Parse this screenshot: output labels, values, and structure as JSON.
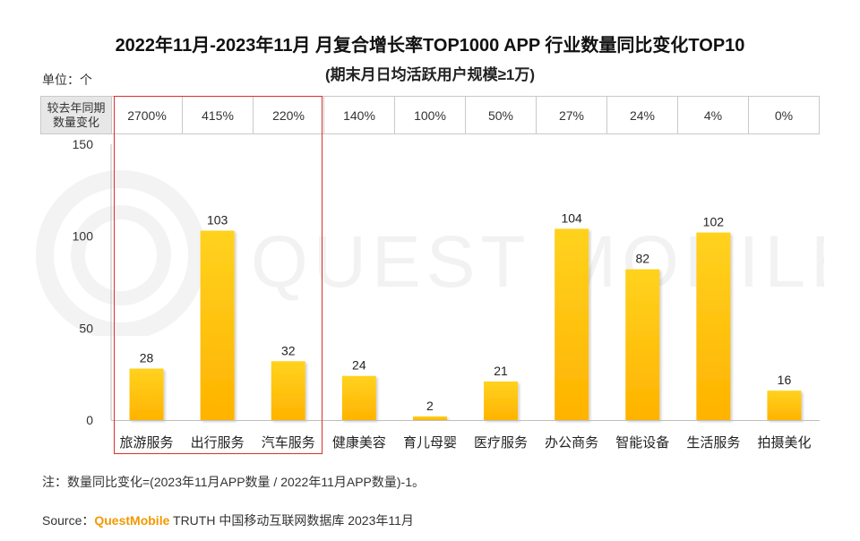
{
  "title": "2022年11月-2023年11月 月复合增长率TOP1000 APP 行业数量同比变化TOP10",
  "subtitle": "(期末月日均活跃用户规模≥1万)",
  "unit_label": "单位：个",
  "change_row_label_1": "较去年同期",
  "change_row_label_2": "数量变化",
  "changes": [
    "2700%",
    "415%",
    "220%",
    "140%",
    "100%",
    "50%",
    "27%",
    "24%",
    "4%",
    "0%"
  ],
  "note": "注：数量同比变化=(2023年11月APP数量 / 2022年11月APP数量)-1。",
  "source_prefix": "Source：",
  "source_brand": "QuestMobile",
  "source_rest": " TRUTH 中国移动互联网数据库 2023年11月",
  "watermark_text": "QUEST MOBILE",
  "colors": {
    "bar_top": "#FFD21F",
    "bar_bottom": "#FFB300",
    "highlight": "#D9302B"
  },
  "chart_data": {
    "type": "bar",
    "categories": [
      "旅游服务",
      "出行服务",
      "汽车服务",
      "健康美容",
      "育儿母婴",
      "医疗服务",
      "办公商务",
      "智能设备",
      "生活服务",
      "拍摄美化"
    ],
    "values": [
      28,
      103,
      32,
      24,
      2,
      21,
      104,
      82,
      102,
      16
    ],
    "y_ticks": [
      0,
      50,
      100,
      150
    ],
    "ylim": [
      0,
      150
    ],
    "highlighted_categories": [
      "旅游服务",
      "出行服务",
      "汽车服务"
    ]
  }
}
